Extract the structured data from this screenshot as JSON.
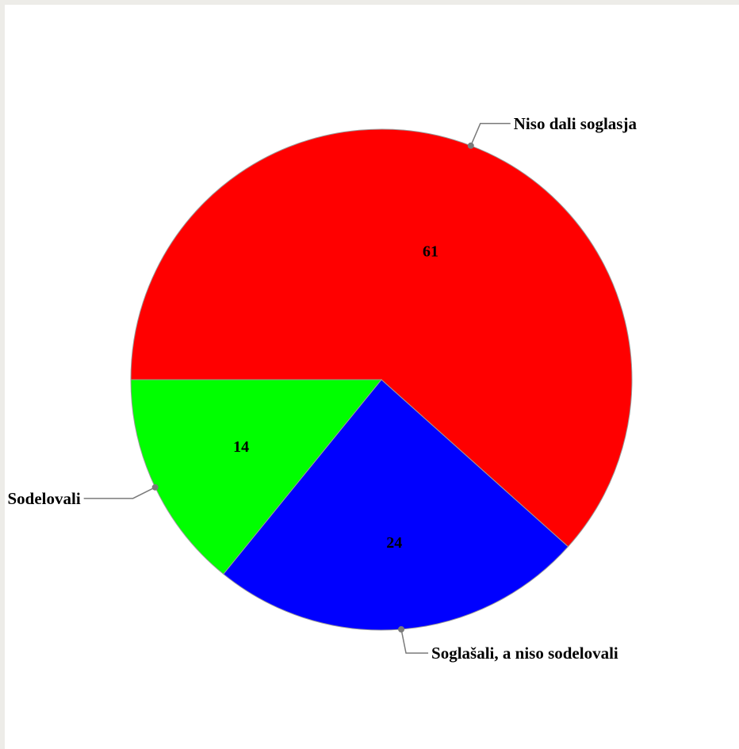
{
  "chart_data": {
    "type": "pie",
    "title": "",
    "slices": [
      {
        "label": "Niso dali soglasja",
        "value": 61,
        "value_label": "61",
        "color": "#ff0000"
      },
      {
        "label": "Soglašali, a niso sodelovali",
        "value": 24,
        "value_label": "24",
        "color": "#0000ff"
      },
      {
        "label": "Sodelovali",
        "value": 14,
        "value_label": "14",
        "color": "#00ff00"
      }
    ],
    "start_angle_deg": 180,
    "direction": "clockwise",
    "legend": "none"
  }
}
